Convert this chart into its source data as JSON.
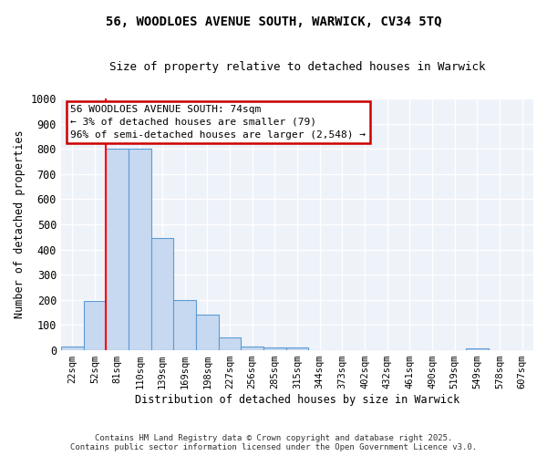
{
  "title1": "56, WOODLOES AVENUE SOUTH, WARWICK, CV34 5TQ",
  "title2": "Size of property relative to detached houses in Warwick",
  "xlabel": "Distribution of detached houses by size in Warwick",
  "ylabel": "Number of detached properties",
  "bar_labels": [
    "22sqm",
    "52sqm",
    "81sqm",
    "110sqm",
    "139sqm",
    "169sqm",
    "198sqm",
    "227sqm",
    "256sqm",
    "285sqm",
    "315sqm",
    "344sqm",
    "373sqm",
    "402sqm",
    "432sqm",
    "461sqm",
    "490sqm",
    "519sqm",
    "549sqm",
    "578sqm",
    "607sqm"
  ],
  "bar_values": [
    15,
    195,
    800,
    800,
    445,
    200,
    140,
    50,
    15,
    10,
    10,
    0,
    0,
    0,
    0,
    0,
    0,
    0,
    8,
    0,
    0
  ],
  "bar_color": "#c7d9f0",
  "bar_edge_color": "#5b9bd5",
  "red_line_index": 1.5,
  "annotation_title": "56 WOODLOES AVENUE SOUTH: 74sqm",
  "annotation_line1": "← 3% of detached houses are smaller (79)",
  "annotation_line2": "96% of semi-detached houses are larger (2,548) →",
  "annotation_box_color": "#ffffff",
  "annotation_box_edge": "#cc0000",
  "ylim": [
    0,
    1000
  ],
  "yticks": [
    0,
    100,
    200,
    300,
    400,
    500,
    600,
    700,
    800,
    900,
    1000
  ],
  "background_color": "#eef2f9",
  "grid_color": "#ffffff",
  "fig_bg_color": "#ffffff",
  "footer1": "Contains HM Land Registry data © Crown copyright and database right 2025.",
  "footer2": "Contains public sector information licensed under the Open Government Licence v3.0."
}
